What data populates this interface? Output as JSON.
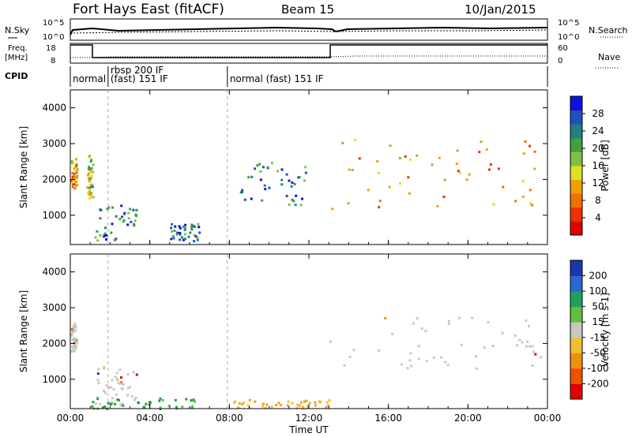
{
  "header": {
    "station": "Fort Hays East (fitACF)",
    "beam": "Beam 15",
    "date": "10/Jan/2015"
  },
  "top_panels": {
    "nsky": {
      "label": "N.Sky",
      "scale_top": "10^5",
      "scale_bottom": "10^0"
    },
    "nsearch": {
      "label": "N.Search",
      "scale_top": "10^5",
      "scale_bottom": "10^0"
    },
    "freq": {
      "label_top": "Freq.",
      "label_unit": "[MHz]",
      "scale_top": "18",
      "scale_bottom": "8"
    },
    "nave": {
      "label": "Nave",
      "scale_top": "60",
      "scale_bottom": "0"
    },
    "cpid": {
      "label": "CPID",
      "segments": [
        {
          "start": 0.0,
          "end": 1.9,
          "text": "normal"
        },
        {
          "start": 1.9,
          "end": 7.9,
          "text": "rbsp 200 IF",
          "text2": "(fast) 151 IF"
        },
        {
          "start": 7.9,
          "end": 24.0,
          "text": "normal (fast) 151 IF"
        }
      ]
    }
  },
  "chart_data": [
    {
      "type": "heatmap",
      "name": "power",
      "xlabel": "",
      "ylabel": "Slant Range [km]",
      "xlim": [
        0,
        24
      ],
      "ylim": [
        180,
        4500
      ],
      "yticks": [
        1000,
        2000,
        3000,
        4000
      ],
      "colorbar": {
        "label": "Power [dB]",
        "ticks": [
          "4",
          "8",
          "12",
          "16",
          "20",
          "24",
          "28"
        ],
        "colors": [
          "#1010e0",
          "#2050c0",
          "#208080",
          "#40a040",
          "#80c040",
          "#e0e020",
          "#f0a000",
          "#f07000",
          "#f03000",
          "#e00000"
        ]
      },
      "regions": [
        {
          "x": [
            0.0,
            0.3
          ],
          "y": [
            1700,
            2600
          ],
          "level": "high"
        },
        {
          "x": [
            0.8,
            1.1
          ],
          "y": [
            1500,
            2700
          ],
          "level": "mid"
        },
        {
          "x": [
            1.2,
            3.3
          ],
          "y": [
            300,
            1400
          ],
          "level": "low"
        },
        {
          "x": [
            5.0,
            6.5
          ],
          "y": [
            300,
            800
          ],
          "level": "low"
        },
        {
          "x": [
            8.5,
            11.8
          ],
          "y": [
            1300,
            2500
          ],
          "level": "low"
        },
        {
          "x": [
            13.0,
            24.0
          ],
          "y": [
            1200,
            3300
          ],
          "level": "high"
        }
      ]
    },
    {
      "type": "heatmap",
      "name": "velocity",
      "xlabel": "Time UT",
      "ylabel": "Slant Range [km]",
      "xlim": [
        0,
        24
      ],
      "ylim": [
        180,
        4500
      ],
      "xticks": [
        "00:00",
        "04:00",
        "08:00",
        "12:00",
        "16:00",
        "20:00",
        "00:00"
      ],
      "yticks": [
        1000,
        2000,
        3000,
        4000
      ],
      "colorbar": {
        "label": "Velocity [m s-1]",
        "ticks": [
          "200",
          "100",
          "50",
          "15",
          "-15",
          "-50",
          "-100",
          "-200"
        ],
        "colors": [
          "#1838b0",
          "#2a6ad0",
          "#20a060",
          "#60c040",
          "#c8c8c0",
          "#f0c030",
          "#f09010",
          "#f05000",
          "#e00000"
        ]
      },
      "regions": [
        {
          "x": [
            0.0,
            0.3
          ],
          "y": [
            1800,
            2600
          ],
          "level": "ground"
        },
        {
          "x": [
            1.2,
            3.3
          ],
          "y": [
            300,
            1400
          ],
          "level": "ground"
        },
        {
          "x": [
            13.0,
            24.0
          ],
          "y": [
            1300,
            2800
          ],
          "level": "ground"
        },
        {
          "x": [
            1.0,
            6.5
          ],
          "y": [
            200,
            500
          ],
          "level": "positive"
        },
        {
          "x": [
            8.0,
            13.0
          ],
          "y": [
            200,
            450
          ],
          "level": "negative"
        }
      ]
    }
  ]
}
